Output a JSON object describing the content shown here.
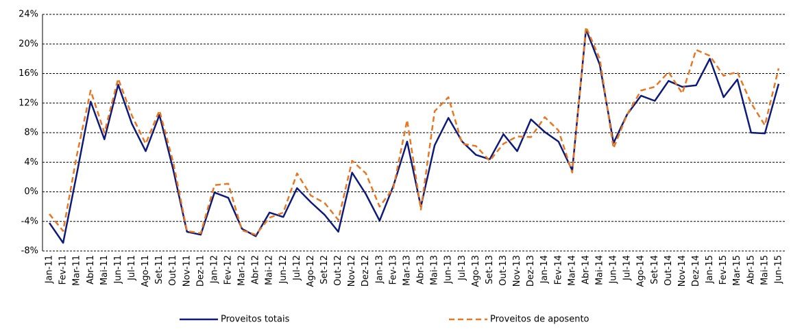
{
  "chart_data": {
    "type": "line",
    "categories": [
      "Jan-11",
      "Fev-11",
      "Mar-11",
      "Abr-11",
      "Mai-11",
      "Jun-11",
      "Jul-11",
      "Ago-11",
      "Set-11",
      "Out-11",
      "Nov-11",
      "Dez-11",
      "Jan-12",
      "Fev-12",
      "Mar-12",
      "Abr-12",
      "Mai-12",
      "Jun-12",
      "Jul-12",
      "Ago-12",
      "Set-12",
      "Out-12",
      "Nov-12",
      "Dez-12",
      "Jan-13",
      "Fev-13",
      "Mar-13",
      "Abr-13",
      "Mai-13",
      "Jun-13",
      "Jul-13",
      "Ago-13",
      "Set-13",
      "Out-13",
      "Nov-13",
      "Dez-13",
      "Jan-14",
      "Fev-14",
      "Mar-14",
      "Abr-14",
      "Mai-14",
      "Jun-14",
      "Jul-14",
      "Ago-14",
      "Set-14",
      "Out-14",
      "Nov-14",
      "Dez-14",
      "Jan-15",
      "Fev-15",
      "Mar-15",
      "Abr-15",
      "Mai-15",
      "Jun-15"
    ],
    "series": [
      {
        "name": "Proveitos totais",
        "color": "#0d1a7a",
        "dashed": false,
        "values": [
          -4.2,
          -6.9,
          2.5,
          12.2,
          7.1,
          14.5,
          9.2,
          5.5,
          10.4,
          3.0,
          -5.4,
          -5.8,
          -0.1,
          -0.8,
          -5.0,
          -6.0,
          -2.8,
          -3.4,
          0.5,
          -1.4,
          -3.1,
          -5.4,
          2.6,
          -0.3,
          -3.9,
          0.8,
          6.8,
          -2.0,
          6.3,
          10.0,
          6.8,
          5.0,
          4.4,
          7.8,
          5.5,
          9.8,
          8.1,
          6.8,
          2.9,
          22.0,
          17.2,
          6.6,
          10.5,
          13.0,
          12.3,
          15.0,
          14.2,
          14.4,
          18.0,
          12.8,
          15.2,
          8.0,
          7.9,
          14.6
        ]
      },
      {
        "name": "Proveitos de aposento",
        "color": "#e87722",
        "dashed": true,
        "values": [
          -3.0,
          -5.3,
          5.0,
          13.7,
          8.0,
          15.3,
          10.3,
          6.5,
          11.0,
          4.0,
          -5.3,
          -5.6,
          0.9,
          1.1,
          -5.2,
          -5.8,
          -3.5,
          -2.8,
          2.5,
          -0.5,
          -1.5,
          -3.8,
          4.2,
          2.5,
          -2.0,
          0.5,
          9.7,
          -2.4,
          10.9,
          12.8,
          6.5,
          6.2,
          4.2,
          6.5,
          7.5,
          7.4,
          10.1,
          8.3,
          2.6,
          22.3,
          18.0,
          5.9,
          10.5,
          13.7,
          14.2,
          16.2,
          13.3,
          19.2,
          18.4,
          15.7,
          16.2,
          12.0,
          9.0,
          16.7
        ]
      }
    ],
    "ylim": [
      -8,
      24
    ],
    "yticks": [
      {
        "value": -8,
        "label": "-8%"
      },
      {
        "value": -4,
        "label": "-4%"
      },
      {
        "value": 0,
        "label": "0%"
      },
      {
        "value": 4,
        "label": "4%"
      },
      {
        "value": 8,
        "label": "8%"
      },
      {
        "value": 12,
        "label": "12%"
      },
      {
        "value": 16,
        "label": "16%"
      },
      {
        "value": 20,
        "label": "20%"
      },
      {
        "value": 24,
        "label": "24%"
      }
    ],
    "grid": true,
    "legend": "bottom"
  }
}
